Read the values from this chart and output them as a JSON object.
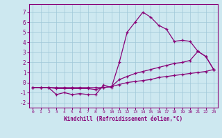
{
  "title": "",
  "xlabel": "Windchill (Refroidissement éolien,°C)",
  "ylabel": "",
  "bg_color": "#cde8f0",
  "grid_color": "#a0c8d8",
  "line_color": "#880077",
  "xlim": [
    -0.5,
    23.5
  ],
  "ylim": [
    -2.5,
    7.8
  ],
  "xticks": [
    0,
    1,
    2,
    3,
    4,
    5,
    6,
    7,
    8,
    9,
    10,
    11,
    12,
    13,
    14,
    15,
    16,
    17,
    18,
    19,
    20,
    21,
    22,
    23
  ],
  "yticks": [
    -2,
    -1,
    0,
    1,
    2,
    3,
    4,
    5,
    6,
    7
  ],
  "line1_x": [
    0,
    1,
    2,
    3,
    4,
    5,
    6,
    7,
    8,
    9,
    10,
    11,
    12,
    13,
    14,
    15,
    16,
    17,
    18,
    19,
    20,
    21,
    22,
    23
  ],
  "line1_y": [
    -0.5,
    -0.5,
    -0.5,
    -1.2,
    -1.0,
    -1.2,
    -1.1,
    -1.2,
    -1.2,
    -0.25,
    -0.5,
    2.0,
    5.0,
    6.0,
    7.0,
    6.5,
    5.7,
    5.3,
    4.1,
    4.2,
    4.1,
    3.1,
    2.6,
    1.3
  ],
  "line2_x": [
    0,
    1,
    2,
    3,
    4,
    5,
    6,
    7,
    8,
    9,
    10,
    11,
    12,
    13,
    14,
    15,
    16,
    17,
    18,
    19,
    20,
    21,
    22,
    23
  ],
  "line2_y": [
    -0.5,
    -0.5,
    -0.5,
    -0.6,
    -0.6,
    -0.6,
    -0.6,
    -0.6,
    -0.7,
    -0.5,
    -0.4,
    0.3,
    0.6,
    0.9,
    1.1,
    1.3,
    1.5,
    1.7,
    1.9,
    2.0,
    2.2,
    3.1,
    2.6,
    1.3
  ],
  "line3_x": [
    0,
    1,
    2,
    3,
    4,
    5,
    6,
    7,
    8,
    9,
    10,
    11,
    12,
    13,
    14,
    15,
    16,
    17,
    18,
    19,
    20,
    21,
    22,
    23
  ],
  "line3_y": [
    -0.5,
    -0.5,
    -0.5,
    -0.5,
    -0.5,
    -0.5,
    -0.5,
    -0.5,
    -0.5,
    -0.5,
    -0.4,
    -0.2,
    0.0,
    0.1,
    0.2,
    0.3,
    0.5,
    0.6,
    0.7,
    0.8,
    0.9,
    1.0,
    1.1,
    1.3
  ]
}
